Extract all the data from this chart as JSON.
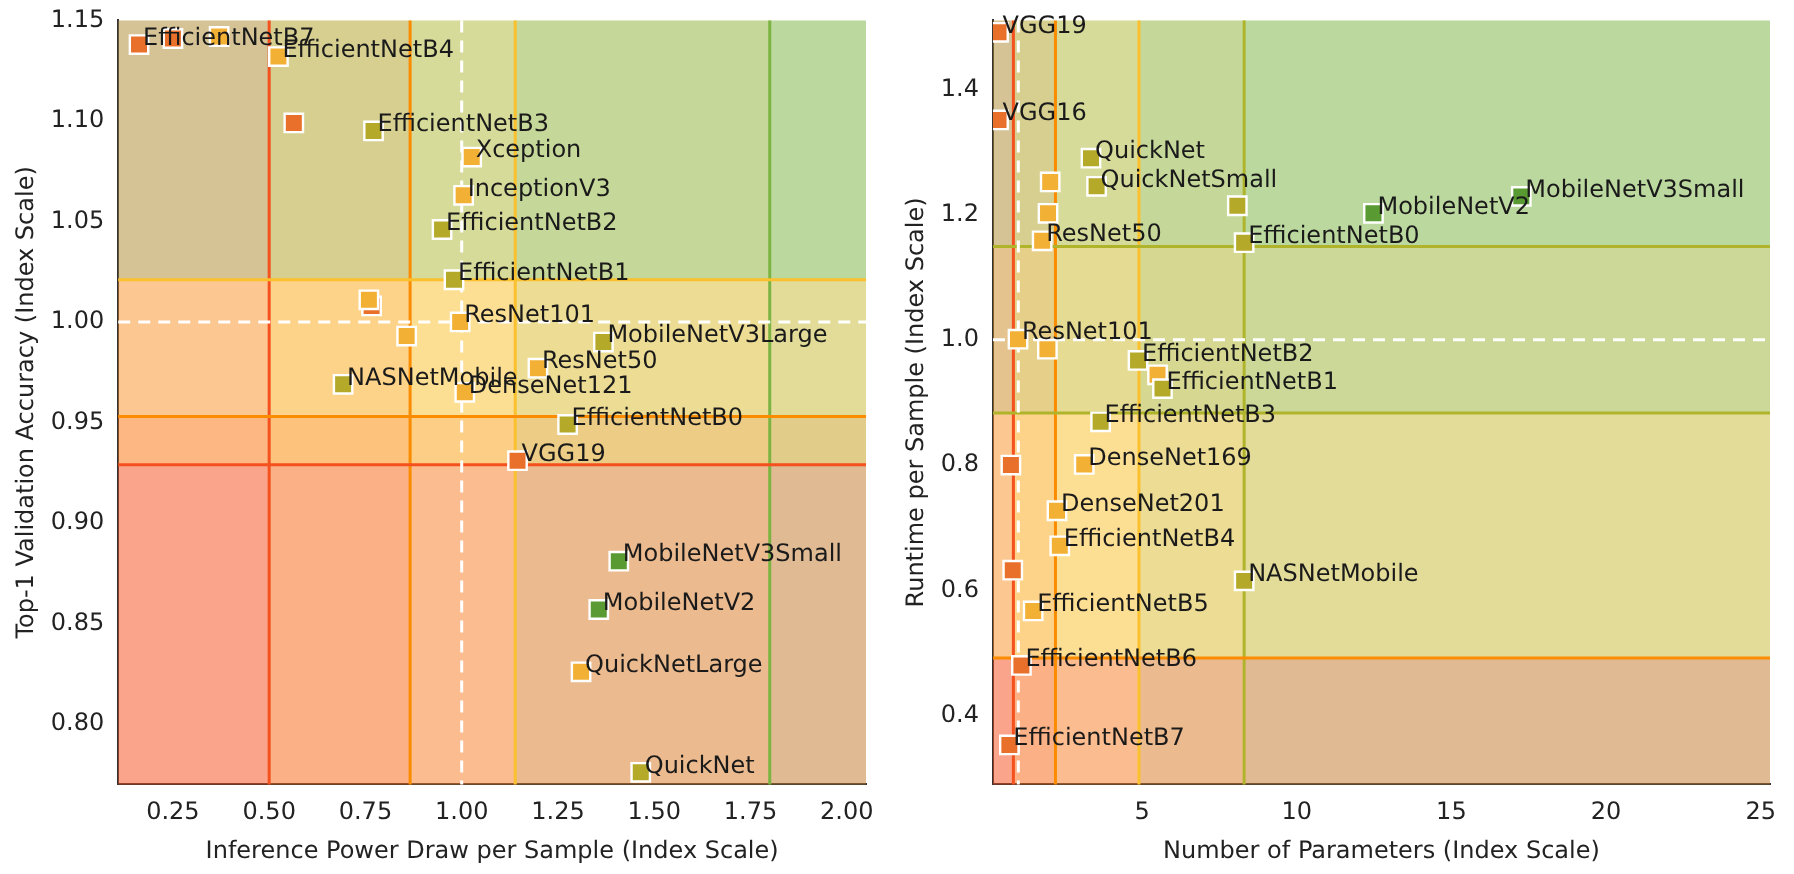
{
  "chart_data": [
    {
      "type": "scatter",
      "xlabel": "Inference Power Draw per Sample (Index Scale)",
      "ylabel": "Top-1 Validation Accuracy (Index Scale)",
      "marker": "square",
      "grid": false,
      "legend": false,
      "xlim": [
        0.108,
        2.05
      ],
      "ylim": [
        0.77,
        1.15
      ],
      "xticks": [
        {
          "value": 0.25,
          "label": "0.25"
        },
        {
          "value": 0.5,
          "label": "0.50"
        },
        {
          "value": 0.75,
          "label": "0.75"
        },
        {
          "value": 1,
          "label": "1.00"
        },
        {
          "value": 1.25,
          "label": "1.25"
        },
        {
          "value": 1.5,
          "label": "1.50"
        },
        {
          "value": 1.75,
          "label": "1.75"
        },
        {
          "value": 2,
          "label": "2.00"
        }
      ],
      "yticks": [
        {
          "value": 0.8,
          "label": "0.80"
        },
        {
          "value": 0.85,
          "label": "0.85"
        },
        {
          "value": 0.9,
          "label": "0.90"
        },
        {
          "value": 0.95,
          "label": "0.95"
        },
        {
          "value": 1,
          "label": "1.00"
        },
        {
          "value": 1.05,
          "label": "1.05"
        },
        {
          "value": 1.1,
          "label": "1.10"
        },
        {
          "value": 1.15,
          "label": "1.15"
        }
      ],
      "series": [
        {
          "x": [
            0.162,
            0.25,
            0.37,
            0.524,
            0.564,
            0.771,
            1.026,
            1.005,
            0.949,
            0.98,
            0.766,
            0.759,
            0.996,
            0.857,
            1.368,
            1.198,
            0.692,
            1.008,
            1.275,
            1.145,
            1.408,
            1.356,
            1.31,
            1.465
          ],
          "values": [
            1.138,
            1.141,
            1.142,
            1.132,
            1.099,
            1.095,
            1.082,
            1.063,
            1.046,
            1.021,
            1.008,
            1.011,
            1.0,
            0.993,
            0.99,
            0.977,
            0.969,
            0.965,
            0.949,
            0.931,
            0.881,
            0.857,
            0.826,
            0.776
          ],
          "colors": [
            "#e8702a",
            "#e8702a",
            "#f2b134",
            "#f2b134",
            "#e8702a",
            "#b5a92a",
            "#f2b134",
            "#f2b134",
            "#b5a92a",
            "#b5a92a",
            "#e8702a",
            "#f2b134",
            "#f2b134",
            "#f2b134",
            "#b5a92a",
            "#f2b134",
            "#b5a92a",
            "#f2b134",
            "#b5a92a",
            "#e8702a",
            "#5a9a32",
            "#5a9a32",
            "#f2b134",
            "#b5a92a"
          ]
        }
      ],
      "bands": [
        {
          "axis": "x",
          "from": 0.108,
          "to": 0.5,
          "color": "#f4511e"
        },
        {
          "axis": "x",
          "from": 0.5,
          "to": 0.866,
          "color": "#fb8c00"
        },
        {
          "axis": "x",
          "from": 0.866,
          "to": 1.139,
          "color": "#fbc02d"
        },
        {
          "axis": "x",
          "from": 1.139,
          "to": 1.8,
          "color": "#afb42b"
        },
        {
          "axis": "x",
          "from": 1.8,
          "to": 2.05,
          "color": "#7cb342"
        },
        {
          "axis": "y",
          "from": 0.77,
          "to": 0.929,
          "color": "#f4511e"
        },
        {
          "axis": "y",
          "from": 0.929,
          "to": 0.953,
          "color": "#fb8c00"
        },
        {
          "axis": "y",
          "from": 0.953,
          "to": 1.021,
          "color": "#fbc02d"
        },
        {
          "axis": "y",
          "from": 1.021,
          "to": 1.15,
          "color": "#7cb342"
        }
      ],
      "ref_lines": [
        {
          "axis": "x",
          "value": 0.5,
          "color": "#f4511e"
        },
        {
          "axis": "x",
          "value": 0.866,
          "color": "#fb8c00"
        },
        {
          "axis": "x",
          "value": 1.139,
          "color": "#fbc02d"
        },
        {
          "axis": "x",
          "value": 1.8,
          "color": "#7cb342"
        },
        {
          "axis": "y",
          "value": 0.929,
          "color": "#f4511e"
        },
        {
          "axis": "y",
          "value": 0.953,
          "color": "#fb8c00"
        },
        {
          "axis": "y",
          "value": 1.021,
          "color": "#fbc02d"
        },
        {
          "axis": "x",
          "value": 1,
          "color": "#ffffff",
          "line_style": "dashed"
        },
        {
          "axis": "y",
          "value": 1,
          "color": "#ffffff",
          "line_style": "dashed"
        }
      ],
      "annotations": [
        {
          "text": "EfficientNetB7",
          "x": 0.162,
          "y": 1.138
        },
        {
          "text": "EfficientNetB4",
          "x": 0.524,
          "y": 1.132
        },
        {
          "text": "EfficientNetB3",
          "x": 0.771,
          "y": 1.095
        },
        {
          "text": "Xception",
          "x": 1.026,
          "y": 1.082
        },
        {
          "text": "InceptionV3",
          "x": 1.005,
          "y": 1.063
        },
        {
          "text": "EfficientNetB2",
          "x": 0.949,
          "y": 1.046
        },
        {
          "text": "EfficientNetB1",
          "x": 0.98,
          "y": 1.021
        },
        {
          "text": "ResNet101",
          "x": 0.996,
          "y": 1.0
        },
        {
          "text": "MobileNetV3Large",
          "x": 1.368,
          "y": 0.99
        },
        {
          "text": "ResNet50",
          "x": 1.198,
          "y": 0.977
        },
        {
          "text": "NASNetMobile",
          "x": 0.692,
          "y": 0.969
        },
        {
          "text": "DenseNet121",
          "x": 1.008,
          "y": 0.965
        },
        {
          "text": "EfficientNetB0",
          "x": 1.275,
          "y": 0.949
        },
        {
          "text": "VGG19",
          "x": 1.145,
          "y": 0.931
        },
        {
          "text": "MobileNetV3Small",
          "x": 1.408,
          "y": 0.881
        },
        {
          "text": "MobileNetV2",
          "x": 1.356,
          "y": 0.857
        },
        {
          "text": "QuickNetLarge",
          "x": 1.31,
          "y": 0.826
        },
        {
          "text": "QuickNet",
          "x": 1.465,
          "y": 0.776
        }
      ]
    },
    {
      "type": "scatter",
      "xlabel": "Number of Parameters (Index Scale)",
      "ylabel": "Runtime per Sample (Index Scale)",
      "marker": "square",
      "grid": false,
      "legend": false,
      "xlim": [
        0.18,
        25.3
      ],
      "ylim": [
        0.29,
        1.51
      ],
      "xticks": [
        5,
        10,
        15,
        20,
        25
      ],
      "yticks": [
        0.4,
        0.6,
        0.8,
        {
          "value": 1,
          "label": "1.0"
        },
        1.2,
        1.4
      ],
      "series": [
        {
          "x": [
            0.36,
            0.36,
            3.35,
            2.03,
            3.53,
            8.08,
            1.96,
            12.48,
            17.26,
            1.77,
            8.3,
            0.99,
            1.94,
            4.87,
            5.5,
            5.66,
            3.66,
            0.76,
            3.13,
            2.25,
            2.34,
            0.82,
            8.3,
            1.48,
            1.1,
            0.71
          ],
          "values": [
            1.491,
            1.351,
            1.29,
            1.252,
            1.245,
            1.214,
            1.202,
            1.202,
            1.229,
            1.158,
            1.155,
            1.001,
            0.985,
            0.967,
            0.944,
            0.922,
            0.869,
            0.8,
            0.801,
            0.727,
            0.671,
            0.632,
            0.615,
            0.567,
            0.48,
            0.353
          ],
          "colors": [
            "#e8702a",
            "#e8702a",
            "#b5a92a",
            "#f2b134",
            "#b5a92a",
            "#b5a92a",
            "#f2b134",
            "#5a9a32",
            "#5a9a32",
            "#f2b134",
            "#b5a92a",
            "#f2b134",
            "#f2b134",
            "#b5a92a",
            "#f2b134",
            "#b5a92a",
            "#b5a92a",
            "#e8702a",
            "#f2b134",
            "#f2b134",
            "#f2b134",
            "#e8702a",
            "#b5a92a",
            "#f2b134",
            "#e8702a",
            "#e8702a"
          ]
        }
      ],
      "bands": [
        {
          "axis": "x",
          "from": 0.18,
          "to": 0.84,
          "color": "#f4511e"
        },
        {
          "axis": "x",
          "from": 0.84,
          "to": 2.2,
          "color": "#fb8c00"
        },
        {
          "axis": "x",
          "from": 2.2,
          "to": 4.9,
          "color": "#fbc02d"
        },
        {
          "axis": "x",
          "from": 4.9,
          "to": 8.3,
          "color": "#afb42b"
        },
        {
          "axis": "x",
          "from": 8.3,
          "to": 25.3,
          "color": "#7cb342"
        },
        {
          "axis": "y",
          "from": 0.29,
          "to": 0.492,
          "color": "#f4511e"
        },
        {
          "axis": "y",
          "from": 0.492,
          "to": 0.883,
          "color": "#fbc02d"
        },
        {
          "axis": "y",
          "from": 0.883,
          "to": 1.149,
          "color": "#afb42b"
        },
        {
          "axis": "y",
          "from": 1.149,
          "to": 1.51,
          "color": "#7cb342"
        }
      ],
      "ref_lines": [
        {
          "axis": "x",
          "value": 0.84,
          "color": "#f4511e"
        },
        {
          "axis": "x",
          "value": 2.2,
          "color": "#fb8c00"
        },
        {
          "axis": "x",
          "value": 4.9,
          "color": "#fbc02d"
        },
        {
          "axis": "x",
          "value": 8.3,
          "color": "#afb42b"
        },
        {
          "axis": "y",
          "value": 0.492,
          "color": "#fb8c00"
        },
        {
          "axis": "y",
          "value": 0.883,
          "color": "#afb42b"
        },
        {
          "axis": "y",
          "value": 1.149,
          "color": "#afb42b"
        },
        {
          "axis": "x",
          "value": 1,
          "color": "#ffffff",
          "line_style": "dashed"
        },
        {
          "axis": "y",
          "value": 1,
          "color": "#ffffff",
          "line_style": "dashed"
        }
      ],
      "annotations": [
        {
          "text": "VGG19",
          "x": 0.36,
          "y": 1.491
        },
        {
          "text": "VGG16",
          "x": 0.36,
          "y": 1.351
        },
        {
          "text": "QuickNet",
          "x": 3.35,
          "y": 1.29
        },
        {
          "text": "QuickNetSmall",
          "x": 3.53,
          "y": 1.245
        },
        {
          "text": "MobileNetV2",
          "x": 12.48,
          "y": 1.202
        },
        {
          "text": "MobileNetV3Small",
          "x": 17.26,
          "y": 1.229
        },
        {
          "text": "ResNet50",
          "x": 1.77,
          "y": 1.158
        },
        {
          "text": "EfficientNetB0",
          "x": 8.3,
          "y": 1.155
        },
        {
          "text": "ResNet101",
          "x": 0.99,
          "y": 1.001
        },
        {
          "text": "EfficientNetB2",
          "x": 4.87,
          "y": 0.967
        },
        {
          "text": "EfficientNetB1",
          "x": 5.66,
          "y": 0.922
        },
        {
          "text": "EfficientNetB3",
          "x": 3.66,
          "y": 0.869
        },
        {
          "text": "DenseNet169",
          "x": 3.13,
          "y": 0.801
        },
        {
          "text": "DenseNet201",
          "x": 2.25,
          "y": 0.727
        },
        {
          "text": "EfficientNetB4",
          "x": 2.34,
          "y": 0.671
        },
        {
          "text": "NASNetMobile",
          "x": 8.3,
          "y": 0.615
        },
        {
          "text": "EfficientNetB5",
          "x": 1.48,
          "y": 0.567
        },
        {
          "text": "EfficientNetB6",
          "x": 1.1,
          "y": 0.48
        },
        {
          "text": "EfficientNetB7",
          "x": 0.71,
          "y": 0.353
        }
      ]
    }
  ]
}
